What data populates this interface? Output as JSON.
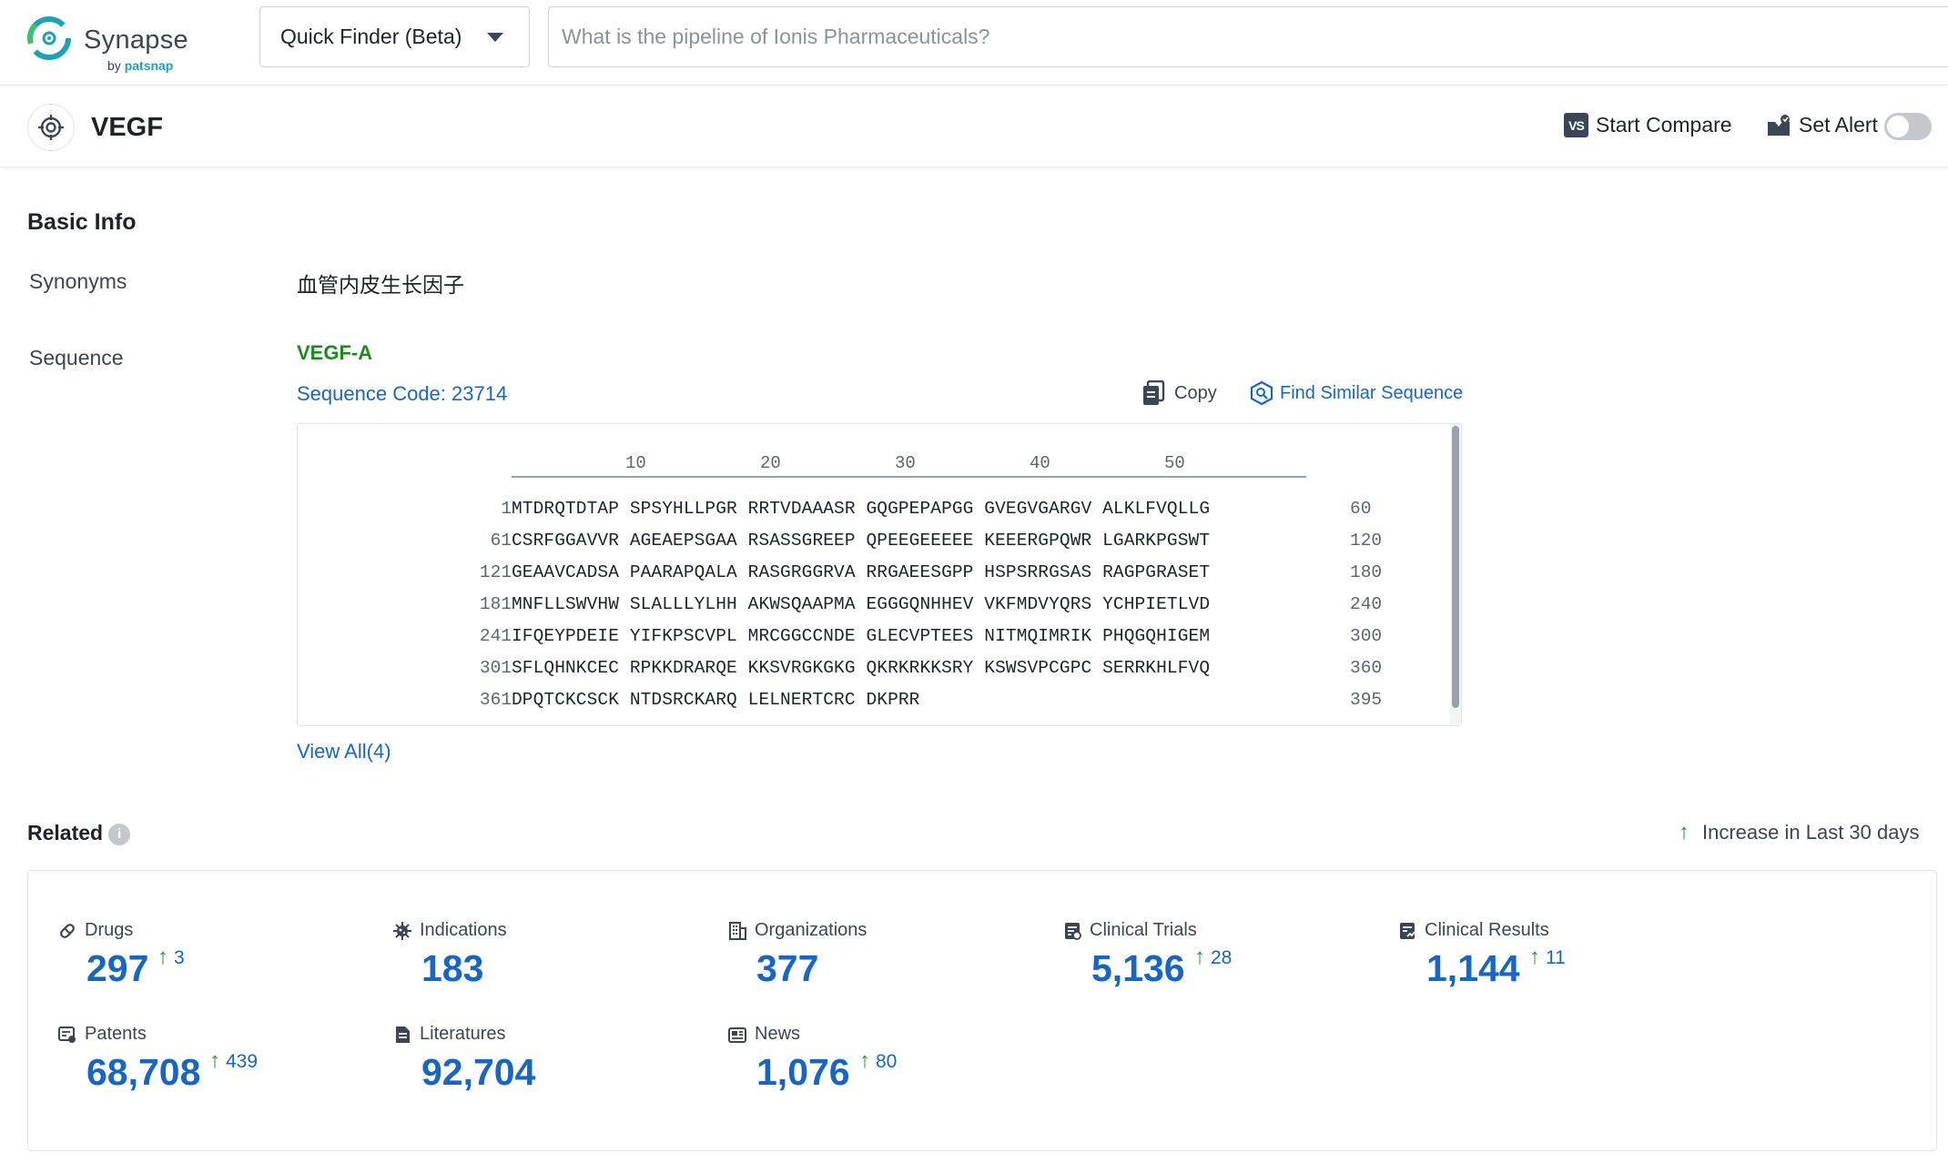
{
  "header": {
    "logo_title": "Synapse",
    "logo_by": "by",
    "logo_brand": "patsnap",
    "finder_label": "Quick Finder (Beta)",
    "search_placeholder": "What is the pipeline of Ionis Pharmaceuticals?"
  },
  "titlebar": {
    "title": "VEGF",
    "compare_icon_text": "VS",
    "compare_label": "Start Compare",
    "alert_label": "Set Alert",
    "alert_on": false
  },
  "basic_info": {
    "section_title": "Basic Info",
    "synonyms_label": "Synonyms",
    "synonyms_value": "血管内皮生长因子",
    "sequence_label": "Sequence",
    "sequence_name": "VEGF-A",
    "sequence_code": "Sequence Code: 23714",
    "copy_label": "Copy",
    "find_similar_label": "Find Similar Sequence",
    "ruler": [
      "10",
      "20",
      "30",
      "40",
      "50"
    ],
    "rows": [
      {
        "start": "1",
        "residues": "MTDRQTDTAP SPSYHLLPGR RRTVDAAASR GQGPEPAPGG GVEGVGARGV ALKLFVQLLG",
        "end": "60"
      },
      {
        "start": "61",
        "residues": "CSRFGGAVVR AGEAEPSGAA RSASSGREEP QPEEGEEEEE KEEERGPQWR LGARKPGSWT",
        "end": "120"
      },
      {
        "start": "121",
        "residues": "GEAAVCADSA PAARAPQALA RASGRGGRVA RRGAEESGPP HSPSRRGSAS RAGPGRASET",
        "end": "180"
      },
      {
        "start": "181",
        "residues": "MNFLLSWVHW SLALLLYLHH AKWSQAAPMA EGGGQNHHEV VKFMDVYQRS YCHPIETLVD",
        "end": "240"
      },
      {
        "start": "241",
        "residues": "IFQEYPDEIE YIFKPSCVPL MRCGGCCNDE GLECVPTEES NITMQIMRIK PHQGQHIGEM",
        "end": "300"
      },
      {
        "start": "301",
        "residues": "SFLQHNKCEC RPKKDRARQE KKSVRGKGKG QKRKRKKSRY KSWSVPCGPC SERRKHLFVQ",
        "end": "360"
      },
      {
        "start": "361",
        "residues": "DPQTCKCSCK NTDSRCKARQ LELNERTCRC DKPRR",
        "end": "395"
      }
    ],
    "view_all": "View All(4)"
  },
  "related": {
    "section_title": "Related",
    "info_glyph": "i",
    "legend_arrow": "↑",
    "legend_label": "Increase in Last 30 days",
    "stats": [
      {
        "label": "Drugs",
        "icon": "pill-icon",
        "value": "297",
        "increase": "3"
      },
      {
        "label": "Indications",
        "icon": "virus-icon",
        "value": "183",
        "increase": ""
      },
      {
        "label": "Organizations",
        "icon": "building-icon",
        "value": "377",
        "increase": ""
      },
      {
        "label": "Clinical Trials",
        "icon": "clipboard-icon",
        "value": "5,136",
        "increase": "28"
      },
      {
        "label": "Clinical Results",
        "icon": "results-icon",
        "value": "1,144",
        "increase": "11"
      },
      {
        "label": "Patents",
        "icon": "patent-icon",
        "value": "68,708",
        "increase": "439"
      },
      {
        "label": "Literatures",
        "icon": "document-icon",
        "value": "92,704",
        "increase": ""
      },
      {
        "label": "News",
        "icon": "news-icon",
        "value": "1,076",
        "increase": "80"
      }
    ]
  },
  "colors": {
    "link": "#1766c4",
    "sequence_name": "#1e8a1e",
    "increase_arrow": "#2b9a2b",
    "logo_accent": "#1ea0b9"
  }
}
